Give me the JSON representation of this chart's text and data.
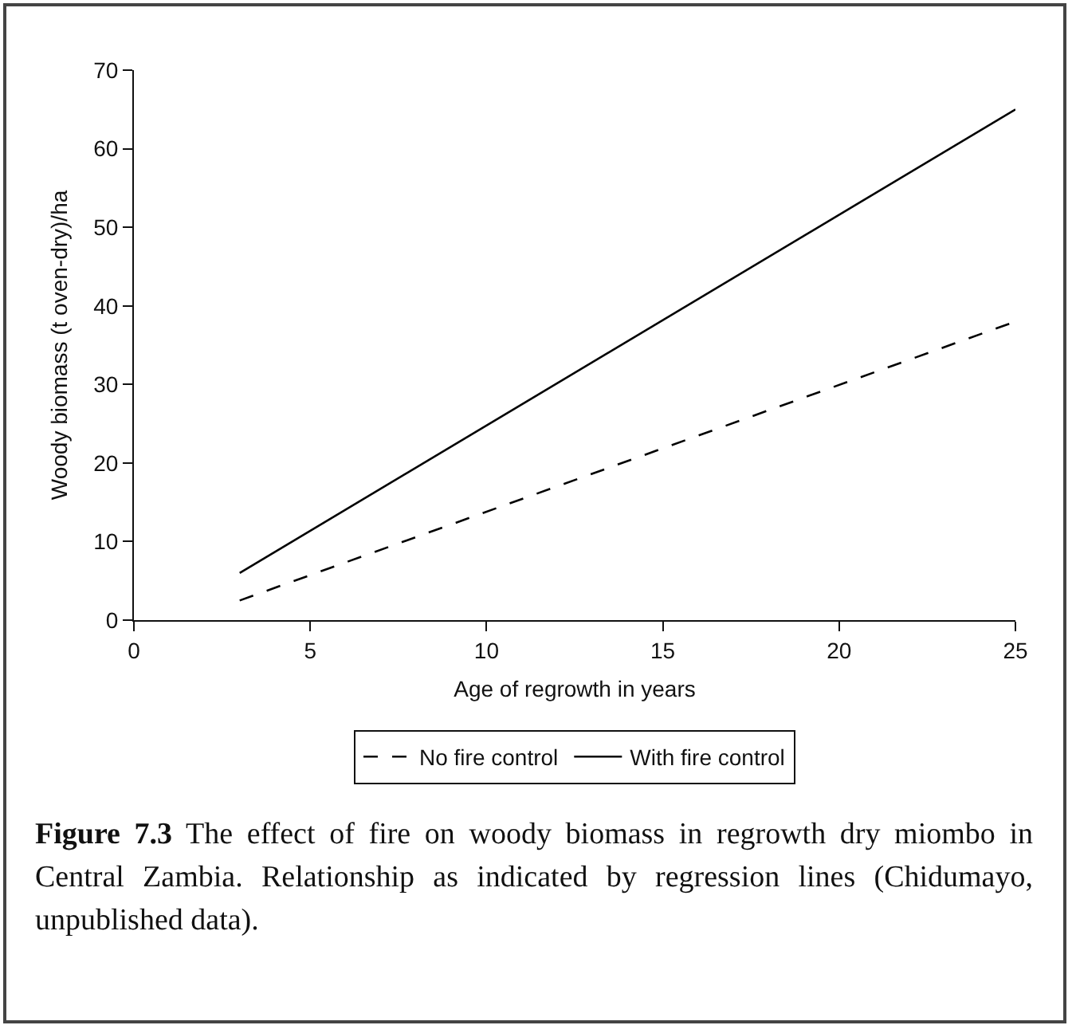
{
  "chart_data": {
    "type": "line",
    "xlabel": "Age of regrowth in years",
    "ylabel": "Woody biomass (t oven-dry)/ha",
    "x": [
      3,
      25
    ],
    "xlim": [
      0,
      25
    ],
    "xticks": [
      0,
      5,
      10,
      15,
      20,
      25
    ],
    "ylim": [
      0,
      70
    ],
    "yticks": [
      0,
      10,
      20,
      30,
      40,
      50,
      60,
      70
    ],
    "grid": false,
    "legend": "bottom",
    "marker": "none",
    "series": [
      {
        "name": "No fire control",
        "color": "#000000",
        "line_style": "dashed",
        "values": [
          2.5,
          38
        ]
      },
      {
        "name": "With fire control",
        "color": "#000000",
        "line_style": "solid",
        "values": [
          6,
          65
        ]
      }
    ],
    "annotations": [
      "Figure 7.3 The effect of fire on woody biomass in regrowth dry miombo in Central Zambia. Relationship as indicated by regression lines (Chidumayo, unpublished data)."
    ]
  }
}
